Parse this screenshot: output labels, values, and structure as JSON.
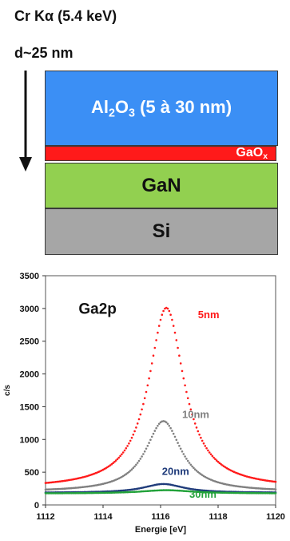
{
  "header": {
    "line1_prefix": "Cr K",
    "line1_alpha": "α",
    "line1_suffix": " (5.4 keV)",
    "line2": "d~25 nm"
  },
  "layers": {
    "al2o3": {
      "base1": "Al",
      "sub1": "2",
      "base2": "O",
      "sub2": "3",
      "rest": " (5 à 30 nm)",
      "color": "#3b8ff5"
    },
    "gaox": {
      "base": "GaO",
      "sub": "x",
      "color": "#ff1a1a"
    },
    "gan": {
      "label": "GaN",
      "color": "#92d050"
    },
    "si": {
      "label": "Si",
      "color": "#a6a6a6"
    }
  },
  "chart_data": {
    "type": "scatter",
    "annotation": "Ga2p",
    "xlabel": "Energie [eV]",
    "ylabel": "c/s",
    "xlim": [
      1112,
      1120
    ],
    "ylim": [
      0,
      3500
    ],
    "xticks": [
      1112,
      1114,
      1116,
      1118,
      1120
    ],
    "yticks": [
      0,
      500,
      1000,
      1500,
      2000,
      2500,
      3000,
      3500
    ],
    "grid": false,
    "series": [
      {
        "name": "5nm",
        "color": "#ff1a1a",
        "baseline": 250,
        "peak_height": 2760,
        "center": 1116.2,
        "halfwidth": 0.75,
        "label_at": [
          1117.3,
          2850
        ]
      },
      {
        "name": "10nm",
        "color": "#808080",
        "baseline": 200,
        "peak_height": 1080,
        "center": 1116.1,
        "halfwidth": 0.75,
        "label_at": [
          1116.75,
          1330
        ]
      },
      {
        "name": "20nm",
        "color": "#1f3b7a",
        "baseline": 185,
        "peak_height": 135,
        "center": 1116.1,
        "halfwidth": 0.85,
        "label_at": [
          1116.05,
          460
        ]
      },
      {
        "name": "30nm",
        "color": "#22a23a",
        "baseline": 175,
        "peak_height": 50,
        "center": 1116.2,
        "halfwidth": 1.1,
        "label_at": [
          1117.0,
          110
        ]
      }
    ]
  }
}
